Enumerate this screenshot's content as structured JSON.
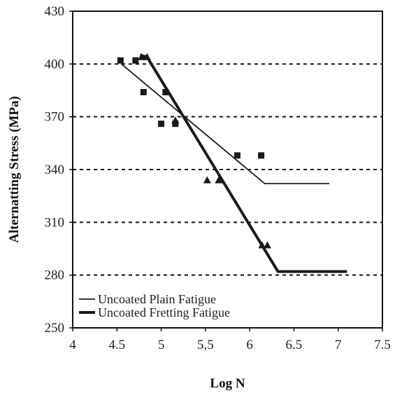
{
  "chart_data": {
    "type": "line",
    "xlabel": "Log N",
    "ylabel": "Alternatting Stress (MPa)",
    "xlim": [
      4,
      7.5
    ],
    "ylim": [
      250,
      430
    ],
    "x_ticks": [
      4,
      4.5,
      5,
      5.5,
      6,
      6.5,
      7,
      7.5
    ],
    "x_tick_labels": [
      "4",
      "4.5",
      "5",
      "5,5",
      "6",
      "6.5",
      "7",
      "7.5"
    ],
    "y_ticks": [
      250,
      280,
      310,
      340,
      370,
      400,
      430
    ],
    "y_tick_labels": [
      "250",
      "280",
      "310",
      "340",
      "370",
      "400",
      "430"
    ],
    "grid": "horizontal-dashed",
    "legend_position": "bottom-left",
    "colors": {
      "series": "#1a1a1a",
      "grid": "#111111",
      "axis": "#111111"
    },
    "series": [
      {
        "name": "Uncoated Plain Fatigue",
        "style": "thin-line",
        "marker": "square",
        "line": [
          [
            4.55,
            400
          ],
          [
            6.17,
            332
          ],
          [
            6.9,
            332
          ]
        ],
        "points": [
          [
            4.54,
            402
          ],
          [
            4.71,
            402
          ],
          [
            4.8,
            384
          ],
          [
            5.0,
            366
          ],
          [
            5.05,
            384
          ],
          [
            5.16,
            366
          ],
          [
            5.86,
            348
          ],
          [
            6.13,
            348
          ]
        ]
      },
      {
        "name": "Uncoated Fretting Fatigue",
        "style": "thick-line",
        "marker": "triangle",
        "line": [
          [
            4.76,
            405
          ],
          [
            4.84,
            404
          ],
          [
            6.32,
            282
          ],
          [
            7.1,
            282
          ]
        ],
        "points": [
          [
            4.78,
            404
          ],
          [
            4.84,
            404
          ],
          [
            5.16,
            368
          ],
          [
            5.52,
            334
          ],
          [
            5.65,
            334
          ],
          [
            6.14,
            297
          ],
          [
            6.2,
            297
          ]
        ]
      }
    ]
  }
}
